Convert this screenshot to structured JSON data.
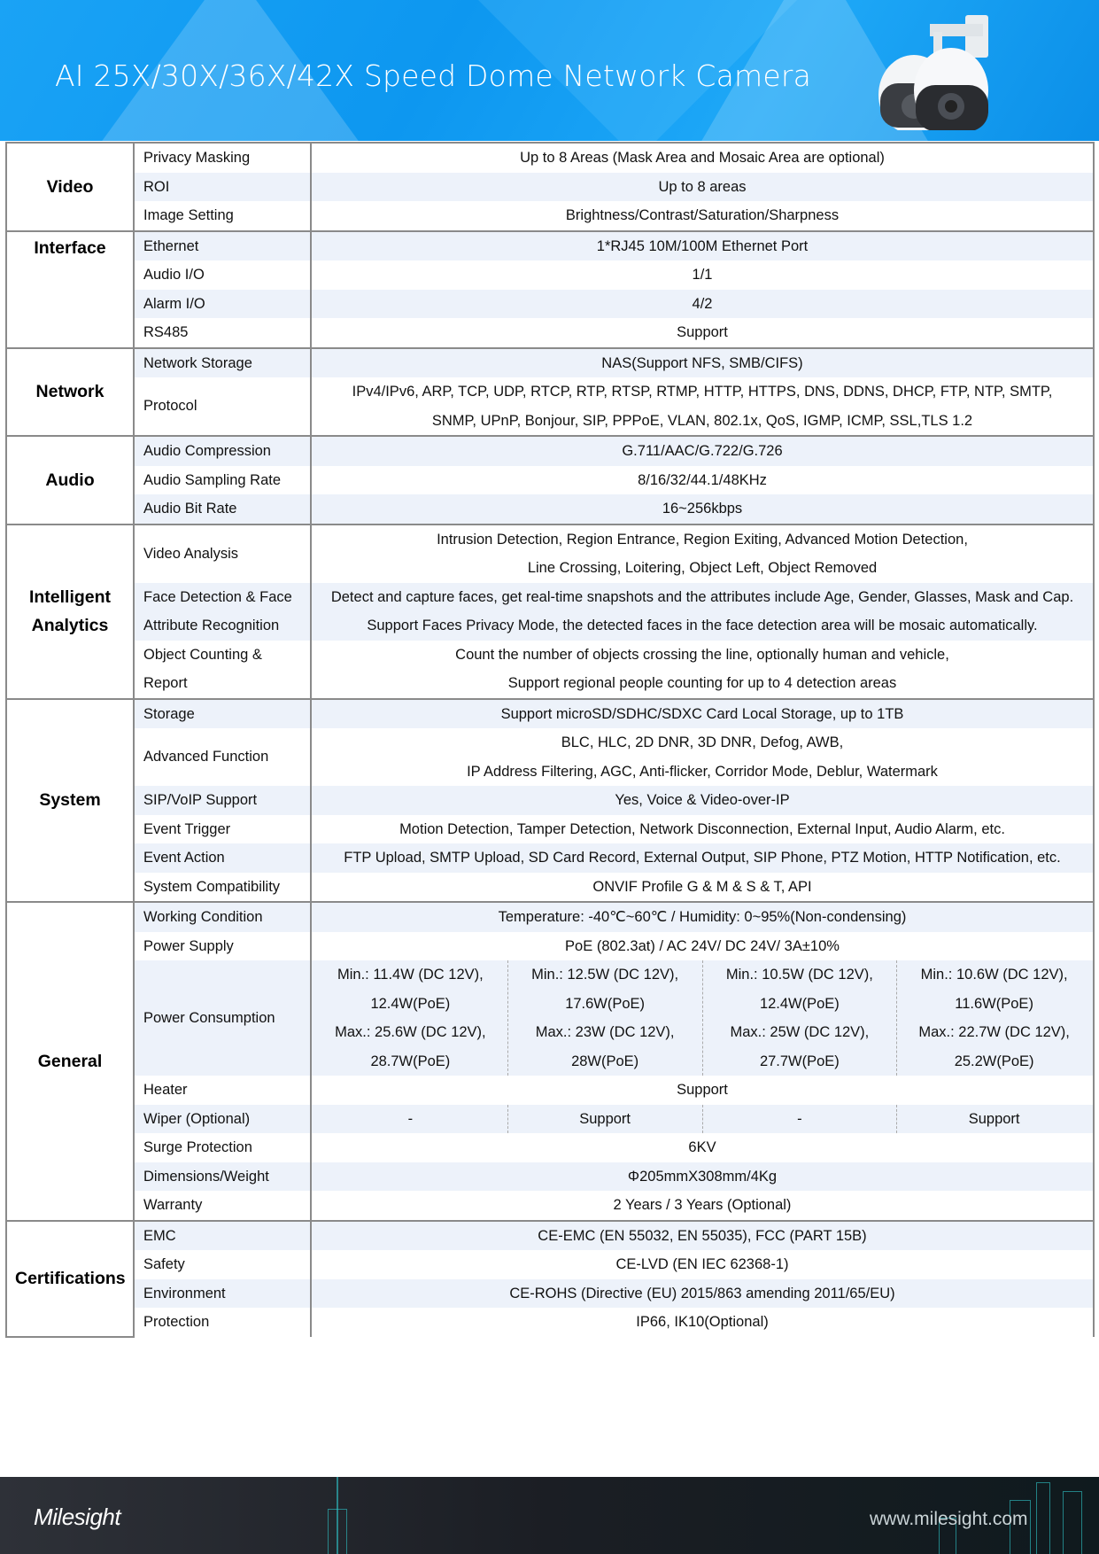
{
  "header": {
    "title": "AI 25X/30X/36X/42X Speed Dome Network Camera",
    "accent": "#0d97f0",
    "image": "speed-dome-camera"
  },
  "sections": [
    {
      "label": "Video",
      "rows": [
        {
          "label": "Privacy Masking",
          "value": [
            "Up to 8 Areas (Mask Area and Mosaic Area are optional)"
          ]
        },
        {
          "label": "ROI",
          "value": [
            "Up to 8 areas"
          ]
        },
        {
          "label": "Image Setting",
          "value": [
            "Brightness/Contrast/Saturation/Sharpness"
          ]
        }
      ]
    },
    {
      "label": "Interface",
      "rows": [
        {
          "label": "Ethernet",
          "value": [
            "1*RJ45 10M/100M Ethernet Port"
          ]
        },
        {
          "label": "Audio I/O",
          "value": [
            "1/1"
          ]
        },
        {
          "label": "Alarm I/O",
          "value": [
            "4/2"
          ]
        },
        {
          "label": "RS485",
          "value": [
            "Support"
          ]
        }
      ]
    },
    {
      "label": "Network",
      "rows": [
        {
          "label": "Network Storage",
          "value": [
            "NAS(Support NFS, SMB/CIFS)"
          ]
        },
        {
          "label": "Protocol",
          "value": [
            "IPv4/IPv6, ARP, TCP, UDP, RTCP, RTP, RTSP, RTMP, HTTP, HTTPS, DNS, DDNS, DHCP, FTP, NTP, SMTP,",
            "SNMP, UPnP, Bonjour, SIP, PPPoE, VLAN, 802.1x, QoS, IGMP, ICMP, SSL,TLS 1.2"
          ]
        }
      ]
    },
    {
      "label": "Audio",
      "rows": [
        {
          "label": "Audio Compression",
          "value": [
            "G.711/AAC/G.722/G.726"
          ]
        },
        {
          "label": "Audio Sampling Rate",
          "value": [
            "8/16/32/44.1/48KHz"
          ]
        },
        {
          "label": "Audio Bit Rate",
          "value": [
            "16~256kbps"
          ]
        }
      ]
    },
    {
      "label": "Intelligent Analytics",
      "rows": [
        {
          "label": "Video Analysis",
          "value": [
            "Intrusion Detection, Region Entrance, Region Exiting, Advanced Motion Detection,",
            "Line Crossing, Loitering, Object Left, Object Removed"
          ]
        },
        {
          "label": "Face Detection & Face Attribute Recognition",
          "value": [
            "Detect and capture faces, get real-time snapshots and the attributes include Age, Gender, Glasses, Mask and Cap.",
            "Support Faces Privacy Mode, the detected faces in the face detection area will be mosaic automatically."
          ]
        },
        {
          "label": "Object Counting & Report",
          "value": [
            "Count the number of objects crossing the line, optionally human and vehicle,",
            "Support regional people counting for up to 4 detection areas"
          ]
        }
      ]
    },
    {
      "label": "System",
      "rows": [
        {
          "label": "Storage",
          "value": [
            "Support microSD/SDHC/SDXC Card Local Storage, up to 1TB"
          ]
        },
        {
          "label": "Advanced Function",
          "value": [
            "BLC, HLC, 2D DNR, 3D DNR, Defog, AWB,",
            "IP Address Filtering, AGC, Anti-flicker, Corridor Mode, Deblur, Watermark"
          ]
        },
        {
          "label": "SIP/VoIP Support",
          "value": [
            "Yes, Voice & Video-over-IP"
          ]
        },
        {
          "label": "Event Trigger",
          "value": [
            "Motion Detection, Tamper Detection, Network Disconnection, External Input, Audio Alarm, etc."
          ]
        },
        {
          "label": "Event Action",
          "value": [
            "FTP Upload, SMTP Upload, SD Card Record, External Output, SIP Phone, PTZ Motion, HTTP Notification, etc."
          ]
        },
        {
          "label": "System Compatibility",
          "value": [
            "ONVIF Profile G & M & S & T, API"
          ]
        }
      ]
    },
    {
      "label": "General",
      "rows": [
        {
          "label": "Working Condition",
          "value": [
            "Temperature: -40℃~60℃ / Humidity: 0~95%(Non-condensing)"
          ]
        },
        {
          "label": "Power Supply",
          "value": [
            "PoE (802.3at) / AC 24V/ DC 24V/ 3A±10%"
          ]
        },
        {
          "label": "Power Consumption",
          "columns": [
            [
              "Min.: 11.4W (DC 12V),",
              "12.4W(PoE)",
              "Max.: 25.6W (DC 12V),",
              "28.7W(PoE)"
            ],
            [
              "Min.: 12.5W (DC 12V),",
              "17.6W(PoE)",
              "Max.: 23W (DC 12V),",
              "28W(PoE)"
            ],
            [
              "Min.: 10.5W (DC 12V),",
              "12.4W(PoE)",
              "Max.: 25W (DC 12V),",
              "27.7W(PoE)"
            ],
            [
              "Min.: 10.6W (DC 12V),",
              "11.6W(PoE)",
              "Max.: 22.7W (DC 12V),",
              "25.2W(PoE)"
            ]
          ]
        },
        {
          "label": "Heater",
          "value": [
            "Support"
          ]
        },
        {
          "label": "Wiper (Optional)",
          "columns": [
            [
              "-"
            ],
            [
              "Support"
            ],
            [
              "-"
            ],
            [
              "Support"
            ]
          ]
        },
        {
          "label": "Surge Protection",
          "value": [
            "6KV"
          ]
        },
        {
          "label": "Dimensions/Weight",
          "value": [
            "Φ205mmX308mm/4Kg"
          ]
        },
        {
          "label": "Warranty",
          "value": [
            "2 Years / 3 Years (Optional)"
          ]
        }
      ]
    },
    {
      "label": "Certifications",
      "rows": [
        {
          "label": "EMC",
          "value": [
            "CE-EMC (EN 55032, EN 55035), FCC (PART 15B)"
          ]
        },
        {
          "label": "Safety",
          "value": [
            "CE-LVD (EN IEC 62368-1)"
          ]
        },
        {
          "label": "Environment",
          "value": [
            "CE-ROHS (Directive (EU) 2015/863 amending 2011/65/EU)"
          ]
        },
        {
          "label": "Protection",
          "value": [
            "IP66, IK10(Optional)"
          ]
        }
      ]
    }
  ],
  "footer": {
    "logo": "Milesight",
    "url": "www.milesight.com"
  }
}
